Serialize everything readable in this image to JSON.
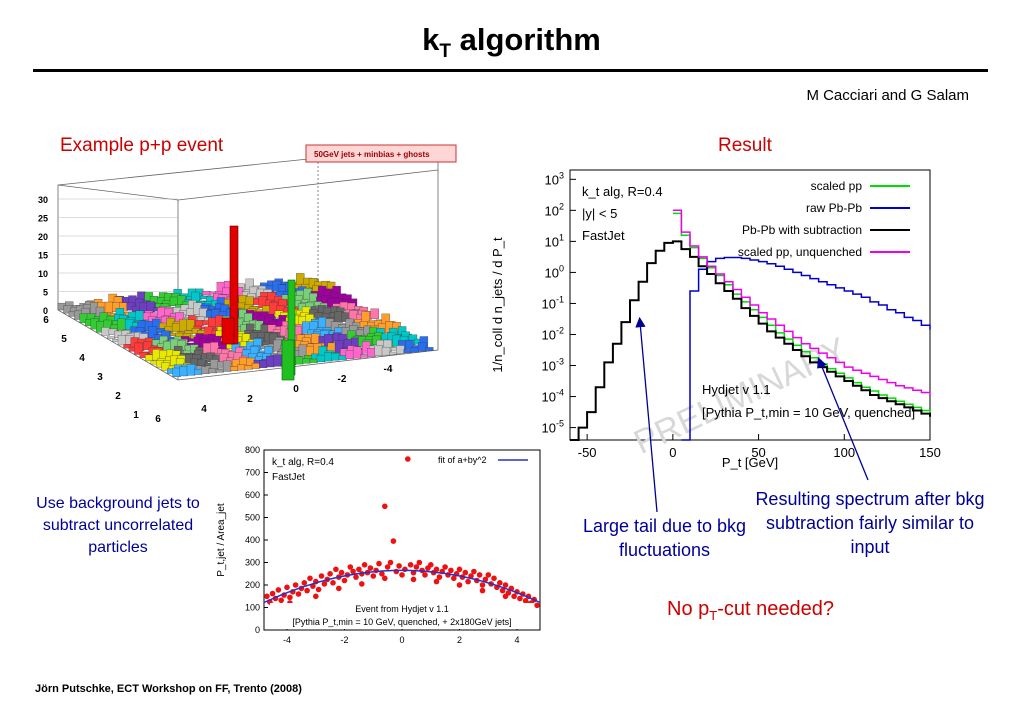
{
  "slide": {
    "title_main": "k",
    "title_sub": "T",
    "title_rest": " algorithm",
    "authors": "M Cacciari and G Salam",
    "example_label": "Example p+p event",
    "result_label": "Result",
    "note_background": "Use background jets to subtract uncorrelated particles",
    "note_tail": "Large tail due to bkg fluctuations",
    "note_spectrum": "Resulting spectrum after bkg subtraction fairly similar to input",
    "question_pre": "No p",
    "question_sub": "T",
    "question_post": "-cut needed?",
    "footer": "Jörn Putschke, ECT Workshop on FF, Trento (2008)",
    "colors": {
      "title_red": "#cc0000",
      "note_blue": "#000099"
    }
  },
  "chart_data": [
    {
      "type": "lego",
      "legend": "50GeV jets + minbias + ghosts",
      "z_ticks": [
        "0",
        "5",
        "10",
        "15",
        "20",
        "25",
        "30"
      ],
      "y_ticks": [
        "6",
        "5",
        "4",
        "3",
        "2",
        "1",
        "0"
      ],
      "x_ticks": [
        "6",
        "4",
        "2",
        "0",
        "-2",
        "-4"
      ],
      "peaks": [
        {
          "label": "central red jet",
          "height": 22,
          "color": "#e00000"
        },
        {
          "label": "green jet",
          "height": 10,
          "color": "#20c020"
        }
      ]
    },
    {
      "type": "scatter",
      "xlim": [
        -4.8,
        4.8
      ],
      "ylim": [
        0,
        800
      ],
      "x_ticks": [
        "-4",
        "-2",
        "0",
        "2",
        "4"
      ],
      "y_ticks": [
        "0",
        "100",
        "200",
        "300",
        "400",
        "500",
        "600",
        "700",
        "800"
      ],
      "ylabel": "P_t,jet / Area_jet",
      "label_alg": "k_t alg, R=0.4",
      "label_fastjet": "FastJet",
      "fit_legend": "fit of a+by^2",
      "caption1": "Event from Hydjet v 1.1",
      "caption2": "[Pythia P_t,min = 10 GeV, quenched, + 2x180GeV jets]",
      "fit": {
        "a": 265,
        "b": -6.2
      },
      "points": [
        [
          -4.7,
          150
        ],
        [
          -4.6,
          125
        ],
        [
          -4.5,
          162
        ],
        [
          -4.4,
          140
        ],
        [
          -4.3,
          178
        ],
        [
          -4.2,
          132
        ],
        [
          -4.1,
          155
        ],
        [
          -4.0,
          190
        ],
        [
          -3.9,
          145
        ],
        [
          -3.8,
          170
        ],
        [
          -3.7,
          200
        ],
        [
          -3.6,
          160
        ],
        [
          -3.5,
          185
        ],
        [
          -3.4,
          210
        ],
        [
          -3.3,
          175
        ],
        [
          -3.2,
          230
        ],
        [
          -3.1,
          195
        ],
        [
          -3.0,
          215
        ],
        [
          -2.9,
          180
        ],
        [
          -2.8,
          240
        ],
        [
          -2.7,
          205
        ],
        [
          -2.6,
          225
        ],
        [
          -2.5,
          250
        ],
        [
          -2.4,
          210
        ],
        [
          -2.3,
          270
        ],
        [
          -2.2,
          235
        ],
        [
          -2.1,
          255
        ],
        [
          -2.0,
          220
        ],
        [
          -1.9,
          245
        ],
        [
          -1.8,
          280
        ],
        [
          -1.7,
          260
        ],
        [
          -1.6,
          235
        ],
        [
          -1.5,
          270
        ],
        [
          -1.4,
          250
        ],
        [
          -1.3,
          290
        ],
        [
          -1.2,
          255
        ],
        [
          -1.1,
          275
        ],
        [
          -1.0,
          240
        ],
        [
          -0.9,
          265
        ],
        [
          -0.8,
          295
        ],
        [
          -0.7,
          250
        ],
        [
          -0.6,
          550
        ],
        [
          -0.5,
          280
        ],
        [
          -0.4,
          300
        ],
        [
          -0.3,
          395
        ],
        [
          -0.2,
          260
        ],
        [
          -0.1,
          285
        ],
        [
          0.0,
          245
        ],
        [
          0.1,
          270
        ],
        [
          0.2,
          760
        ],
        [
          0.3,
          290
        ],
        [
          0.4,
          255
        ],
        [
          0.5,
          280
        ],
        [
          0.6,
          300
        ],
        [
          0.7,
          265
        ],
        [
          0.8,
          245
        ],
        [
          0.9,
          275
        ],
        [
          1.0,
          290
        ],
        [
          1.1,
          255
        ],
        [
          1.2,
          270
        ],
        [
          1.3,
          235
        ],
        [
          1.4,
          260
        ],
        [
          1.5,
          280
        ],
        [
          1.6,
          245
        ],
        [
          1.7,
          265
        ],
        [
          1.8,
          230
        ],
        [
          1.9,
          250
        ],
        [
          2.0,
          270
        ],
        [
          2.1,
          235
        ],
        [
          2.2,
          255
        ],
        [
          2.3,
          215
        ],
        [
          2.4,
          240
        ],
        [
          2.5,
          260
        ],
        [
          2.6,
          220
        ],
        [
          2.7,
          245
        ],
        [
          2.8,
          200
        ],
        [
          2.9,
          225
        ],
        [
          3.0,
          245
        ],
        [
          3.1,
          205
        ],
        [
          3.2,
          230
        ],
        [
          3.3,
          190
        ],
        [
          3.4,
          210
        ],
        [
          3.5,
          175
        ],
        [
          3.6,
          200
        ],
        [
          3.7,
          165
        ],
        [
          3.8,
          185
        ],
        [
          3.9,
          150
        ],
        [
          4.0,
          170
        ],
        [
          4.1,
          140
        ],
        [
          4.2,
          160
        ],
        [
          4.3,
          130
        ],
        [
          4.4,
          150
        ],
        [
          4.5,
          120
        ],
        [
          4.6,
          135
        ],
        [
          4.7,
          110
        ],
        [
          -4.5,
          110
        ],
        [
          -3.9,
          120
        ],
        [
          -3.0,
          150
        ],
        [
          -2.2,
          185
        ],
        [
          -1.4,
          205
        ],
        [
          -0.6,
          230
        ],
        [
          0.4,
          225
        ],
        [
          1.2,
          215
        ],
        [
          2.0,
          200
        ],
        [
          2.8,
          175
        ],
        [
          3.6,
          150
        ],
        [
          4.4,
          115
        ]
      ]
    },
    {
      "type": "line",
      "log_y": true,
      "xlim": [
        -60,
        150
      ],
      "ylim_log10": [
        -5.4,
        3.3
      ],
      "x_ticks": [
        "-50",
        "0",
        "50",
        "100",
        "150"
      ],
      "y_ticks": [
        "10^-5",
        "10^-4",
        "10^-3",
        "10^-2",
        "10^-1",
        "10^0",
        "10^1",
        "10^2",
        "10^3"
      ],
      "xlabel": "P_t [GeV]",
      "ylabel": "1/n_coll d n_jets / d P_t",
      "text_alg": "k_t alg, R=0.4",
      "text_rap": "|y| < 5",
      "text_fastjet": "FastJet",
      "text_hydjet": "Hydjet v 1.1",
      "text_pythia": "[Pythia P_t,min = 10 GeV, quenched]",
      "watermark": "PRELIMINARY",
      "series": [
        {
          "name": "scaled pp",
          "color": "#00dd00",
          "x": [
            0,
            5,
            10,
            15,
            20,
            25,
            30,
            35,
            40,
            45,
            50,
            55,
            60,
            65,
            70,
            75,
            80,
            85,
            90,
            95,
            100,
            105,
            110,
            115,
            120,
            125,
            130,
            135,
            140,
            145,
            150
          ],
          "log10y": [
            1.9,
            1.2,
            0.8,
            0.45,
            0.15,
            -0.1,
            -0.4,
            -0.7,
            -0.95,
            -1.2,
            -1.45,
            -1.7,
            -1.95,
            -2.15,
            -2.35,
            -2.55,
            -2.75,
            -2.95,
            -3.1,
            -3.25,
            -3.4,
            -3.55,
            -3.7,
            -3.82,
            -3.95,
            -4.05,
            -4.15,
            -4.25,
            -4.35,
            -4.45,
            -4.55
          ]
        },
        {
          "name": "raw Pb-Pb",
          "color": "#0000cc",
          "x": [
            5,
            10,
            15,
            20,
            25,
            30,
            35,
            40,
            45,
            50,
            55,
            60,
            65,
            70,
            75,
            80,
            85,
            90,
            95,
            100,
            105,
            110,
            115,
            120,
            125,
            130,
            135,
            140,
            145,
            150
          ],
          "log10y": [
            -5.4,
            -0.6,
            0.1,
            0.35,
            0.45,
            0.48,
            0.48,
            0.45,
            0.4,
            0.35,
            0.28,
            0.2,
            0.1,
            0.0,
            -0.1,
            -0.2,
            -0.3,
            -0.4,
            -0.5,
            -0.6,
            -0.7,
            -0.8,
            -0.95,
            -1.05,
            -1.2,
            -1.3,
            -1.45,
            -1.55,
            -1.7,
            -1.85
          ]
        },
        {
          "name": "Pb-Pb with subtraction",
          "color": "#000000",
          "x": [
            -60,
            -55,
            -50,
            -45,
            -40,
            -35,
            -30,
            -25,
            -20,
            -15,
            -10,
            -5,
            0,
            5,
            10,
            15,
            20,
            25,
            30,
            35,
            40,
            45,
            50,
            55,
            60,
            65,
            70,
            75,
            80,
            85,
            90,
            95,
            100,
            105,
            110,
            115,
            120,
            125,
            130,
            135,
            140,
            145,
            150
          ],
          "log10y": [
            -5.4,
            -5.0,
            -4.5,
            -3.7,
            -2.9,
            -2.3,
            -1.6,
            -0.9,
            -0.3,
            0.3,
            0.7,
            0.95,
            1.0,
            0.75,
            0.5,
            0.2,
            -0.05,
            -0.35,
            -0.6,
            -0.85,
            -1.15,
            -1.4,
            -1.65,
            -1.9,
            -2.1,
            -2.3,
            -2.5,
            -2.7,
            -2.9,
            -3.05,
            -3.2,
            -3.35,
            -3.5,
            -3.65,
            -3.8,
            -3.95,
            -4.05,
            -4.15,
            -4.25,
            -4.35,
            -4.45,
            -4.55,
            -4.65
          ]
        },
        {
          "name": "scaled pp, unquenched",
          "color": "#ee00ee",
          "x": [
            0,
            5,
            10,
            15,
            20,
            25,
            30,
            35,
            40,
            45,
            50,
            55,
            60,
            65,
            70,
            75,
            80,
            85,
            90,
            95,
            100,
            105,
            110,
            115,
            120,
            125,
            130,
            135,
            140,
            145,
            150
          ],
          "log10y": [
            2.0,
            1.3,
            0.85,
            0.5,
            0.2,
            -0.05,
            -0.3,
            -0.55,
            -0.8,
            -1.05,
            -1.3,
            -1.5,
            -1.7,
            -1.9,
            -2.1,
            -2.3,
            -2.45,
            -2.6,
            -2.75,
            -2.9,
            -3.05,
            -3.15,
            -3.25,
            -3.35,
            -3.45,
            -3.55,
            -3.65,
            -3.72,
            -3.8,
            -3.87,
            -3.95
          ]
        }
      ]
    }
  ]
}
